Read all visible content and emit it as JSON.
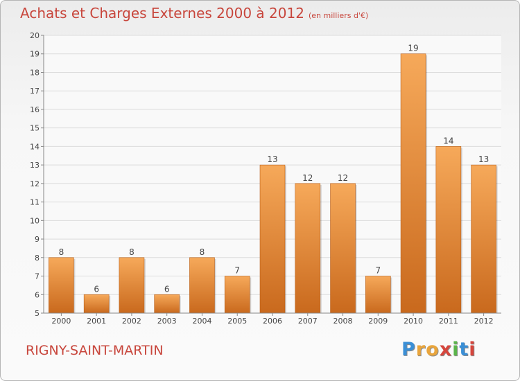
{
  "title": "Achats et Charges Externes 2000 à 2012",
  "unit": "(en milliers d'€)",
  "location": "RIGNY-SAINT-MARTIN",
  "logo": {
    "letters": [
      "P",
      "r",
      "o",
      "x",
      "i",
      "t",
      "i"
    ],
    "colors": [
      "#3a8fd6",
      "#e9a53c",
      "#e9a53c",
      "#d6453c",
      "#5ab44a",
      "#3a8fd6",
      "#d6453c"
    ]
  },
  "chart_data": {
    "type": "bar",
    "categories": [
      "2000",
      "2001",
      "2002",
      "2003",
      "2004",
      "2005",
      "2006",
      "2007",
      "2008",
      "2009",
      "2010",
      "2011",
      "2012"
    ],
    "values": [
      8,
      6,
      8,
      6,
      8,
      7,
      13,
      12,
      12,
      7,
      19,
      14,
      13
    ],
    "ylim": [
      5,
      20
    ],
    "yticks": [
      5,
      6,
      7,
      8,
      9,
      10,
      11,
      12,
      13,
      14,
      15,
      16,
      17,
      18,
      19,
      20
    ],
    "grid": "horizontal",
    "bar_color": "#e8913a"
  }
}
